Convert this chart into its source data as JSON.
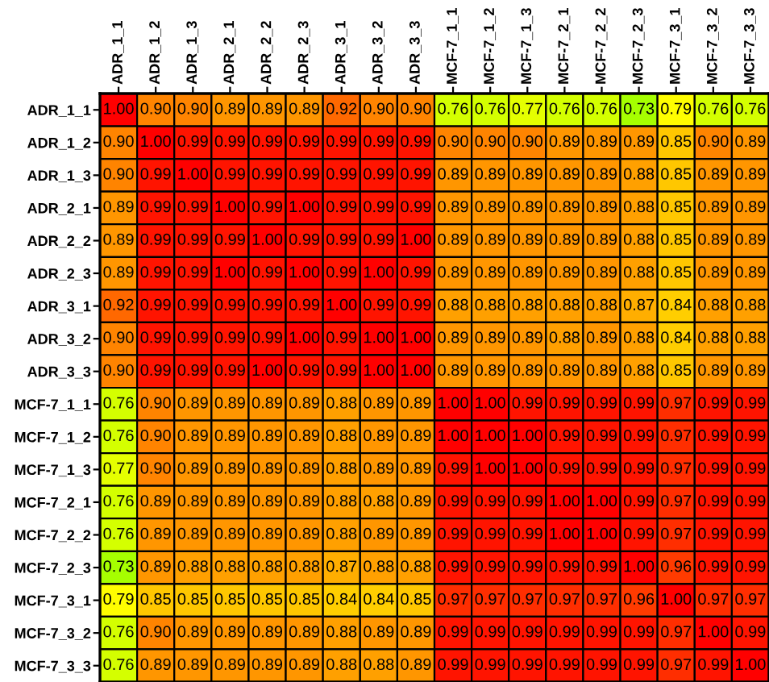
{
  "chart_data": {
    "type": "heatmap",
    "categories": [
      "ADR_1_1",
      "ADR_1_2",
      "ADR_1_3",
      "ADR_2_1",
      "ADR_2_2",
      "ADR_2_3",
      "ADR_3_1",
      "ADR_3_2",
      "ADR_3_3",
      "MCF-7_1_1",
      "MCF-7_1_2",
      "MCF-7_1_3",
      "MCF-7_2_1",
      "MCF-7_2_2",
      "MCF-7_2_3",
      "MCF-7_3_1",
      "MCF-7_3_2",
      "MCF-7_3_3"
    ],
    "y_categories": [
      "ADR_1_1",
      "ADR_1_2",
      "ADR_1_3",
      "ADR_2_1",
      "ADR_2_2",
      "ADR_2_3",
      "ADR_3_1",
      "ADR_3_2",
      "ADR_3_3",
      "MCF-7_1_1",
      "MCF-7_1_2",
      "MCF-7_1_3",
      "MCF-7_2_1",
      "MCF-7_2_2",
      "MCF-7_2_3",
      "MCF-7_3_1",
      "MCF-7_3_2",
      "MCF-7_3_3"
    ],
    "cells": [
      [
        1.0,
        0.9,
        0.9,
        0.89,
        0.89,
        0.89,
        0.92,
        0.9,
        0.9,
        0.76,
        0.76,
        0.77,
        0.76,
        0.76,
        0.73,
        0.79,
        0.76,
        0.76
      ],
      [
        0.9,
        1.0,
        0.99,
        0.99,
        0.99,
        0.99,
        0.99,
        0.99,
        0.99,
        0.9,
        0.9,
        0.9,
        0.89,
        0.89,
        0.89,
        0.85,
        0.9,
        0.89
      ],
      [
        0.9,
        0.99,
        1.0,
        0.99,
        0.99,
        0.99,
        0.99,
        0.99,
        0.99,
        0.89,
        0.89,
        0.89,
        0.89,
        0.89,
        0.88,
        0.85,
        0.89,
        0.89
      ],
      [
        0.89,
        0.99,
        0.99,
        1.0,
        0.99,
        1.0,
        0.99,
        0.99,
        0.99,
        0.89,
        0.89,
        0.89,
        0.89,
        0.89,
        0.88,
        0.85,
        0.89,
        0.89
      ],
      [
        0.89,
        0.99,
        0.99,
        0.99,
        1.0,
        0.99,
        0.99,
        0.99,
        1.0,
        0.89,
        0.89,
        0.89,
        0.89,
        0.89,
        0.88,
        0.85,
        0.89,
        0.89
      ],
      [
        0.89,
        0.99,
        0.99,
        1.0,
        0.99,
        1.0,
        0.99,
        1.0,
        0.99,
        0.89,
        0.89,
        0.89,
        0.89,
        0.89,
        0.88,
        0.85,
        0.89,
        0.89
      ],
      [
        0.92,
        0.99,
        0.99,
        0.99,
        0.99,
        0.99,
        1.0,
        0.99,
        0.99,
        0.88,
        0.88,
        0.88,
        0.88,
        0.88,
        0.87,
        0.84,
        0.88,
        0.88
      ],
      [
        0.9,
        0.99,
        0.99,
        0.99,
        0.99,
        1.0,
        0.99,
        1.0,
        1.0,
        0.89,
        0.89,
        0.89,
        0.88,
        0.89,
        0.88,
        0.84,
        0.88,
        0.88
      ],
      [
        0.9,
        0.99,
        0.99,
        0.99,
        1.0,
        0.99,
        0.99,
        1.0,
        1.0,
        0.89,
        0.89,
        0.89,
        0.89,
        0.89,
        0.88,
        0.85,
        0.89,
        0.89
      ],
      [
        0.76,
        0.9,
        0.89,
        0.89,
        0.89,
        0.89,
        0.88,
        0.89,
        0.89,
        1.0,
        1.0,
        0.99,
        0.99,
        0.99,
        0.99,
        0.97,
        0.99,
        0.99
      ],
      [
        0.76,
        0.9,
        0.89,
        0.89,
        0.89,
        0.89,
        0.88,
        0.89,
        0.89,
        1.0,
        1.0,
        1.0,
        0.99,
        0.99,
        0.99,
        0.97,
        0.99,
        0.99
      ],
      [
        0.77,
        0.9,
        0.89,
        0.89,
        0.89,
        0.89,
        0.88,
        0.89,
        0.89,
        0.99,
        1.0,
        1.0,
        0.99,
        0.99,
        0.99,
        0.97,
        0.99,
        0.99
      ],
      [
        0.76,
        0.89,
        0.89,
        0.89,
        0.89,
        0.89,
        0.88,
        0.88,
        0.89,
        0.99,
        0.99,
        0.99,
        1.0,
        1.0,
        0.99,
        0.97,
        0.99,
        0.99
      ],
      [
        0.76,
        0.89,
        0.89,
        0.89,
        0.89,
        0.89,
        0.88,
        0.89,
        0.89,
        0.99,
        0.99,
        0.99,
        1.0,
        1.0,
        0.99,
        0.97,
        0.99,
        0.99
      ],
      [
        0.73,
        0.89,
        0.88,
        0.88,
        0.88,
        0.88,
        0.87,
        0.88,
        0.88,
        0.99,
        0.99,
        0.99,
        0.99,
        0.99,
        1.0,
        0.96,
        0.99,
        0.99
      ],
      [
        0.79,
        0.85,
        0.85,
        0.85,
        0.85,
        0.85,
        0.84,
        0.84,
        0.85,
        0.97,
        0.97,
        0.97,
        0.97,
        0.97,
        0.96,
        1.0,
        0.97,
        0.97
      ],
      [
        0.76,
        0.9,
        0.89,
        0.89,
        0.89,
        0.89,
        0.88,
        0.89,
        0.89,
        0.99,
        0.99,
        0.99,
        0.99,
        0.99,
        0.99,
        0.97,
        1.0,
        0.99
      ],
      [
        0.76,
        0.89,
        0.89,
        0.89,
        0.89,
        0.89,
        0.88,
        0.88,
        0.89,
        0.99,
        0.99,
        0.99,
        0.99,
        0.99,
        0.99,
        0.97,
        0.99,
        1.0
      ]
    ],
    "cell_labels": [
      [
        "1.00",
        "0.90",
        "0.90",
        "0.89",
        "0.89",
        "0.89",
        "0.92",
        "0.90",
        "0.90",
        "0.76",
        "0.76",
        "0.77",
        "0.76",
        "0.76",
        "0.73",
        "0.79",
        "0.76",
        "0.76"
      ],
      [
        "0.90",
        "1.00",
        "0.99",
        "0.99",
        "0.99",
        "0.99",
        "0.99",
        "0.99",
        "0.99",
        "0.90",
        "0.90",
        "0.90",
        "0.89",
        "0.89",
        "0.89",
        "0.85",
        "0.90",
        "0.89"
      ],
      [
        "0.90",
        "0.99",
        "1.00",
        "0.99",
        "0.99",
        "0.99",
        "0.99",
        "0.99",
        "0.99",
        "0.89",
        "0.89",
        "0.89",
        "0.89",
        "0.89",
        "0.88",
        "0.85",
        "0.89",
        "0.89"
      ],
      [
        "0.89",
        "0.99",
        "0.99",
        "1.00",
        "0.99",
        "1.00",
        "0.99",
        "0.99",
        "0.99",
        "0.89",
        "0.89",
        "0.89",
        "0.89",
        "0.89",
        "0.88",
        "0.85",
        "0.89",
        "0.89"
      ],
      [
        "0.89",
        "0.99",
        "0.99",
        "0.99",
        "1.00",
        "0.99",
        "0.99",
        "0.99",
        "1.00",
        "0.89",
        "0.89",
        "0.89",
        "0.89",
        "0.89",
        "0.88",
        "0.85",
        "0.89",
        "0.89"
      ],
      [
        "0.89",
        "0.99",
        "0.99",
        "1.00",
        "0.99",
        "1.00",
        "0.99",
        "1.00",
        "0.99",
        "0.89",
        "0.89",
        "0.89",
        "0.89",
        "0.89",
        "0.88",
        "0.85",
        "0.89",
        "0.89"
      ],
      [
        "0.92",
        "0.99",
        "0.99",
        "0.99",
        "0.99",
        "0.99",
        "1.00",
        "0.99",
        "0.99",
        "0.88",
        "0.88",
        "0.88",
        "0.88",
        "0.88",
        "0.87",
        "0.84",
        "0.88",
        "0.88"
      ],
      [
        "0.90",
        "0.99",
        "0.99",
        "0.99",
        "0.99",
        "1.00",
        "0.99",
        "1.00",
        "1.00",
        "0.89",
        "0.89",
        "0.89",
        "0.88",
        "0.89",
        "0.88",
        "0.84",
        "0.88",
        "0.88"
      ],
      [
        "0.90",
        "0.99",
        "0.99",
        "0.99",
        "1.00",
        "0.99",
        "0.99",
        "1.00",
        "1.00",
        "0.89",
        "0.89",
        "0.89",
        "0.89",
        "0.89",
        "0.88",
        "0.85",
        "0.89",
        "0.89"
      ],
      [
        "0.76",
        "0.90",
        "0.89",
        "0.89",
        "0.89",
        "0.89",
        "0.88",
        "0.89",
        "0.89",
        "1.00",
        "1.00",
        "0.99",
        "0.99",
        "0.99",
        "0.99",
        "0.97",
        "0.99",
        "0.99"
      ],
      [
        "0.76",
        "0.90",
        "0.89",
        "0.89",
        "0.89",
        "0.89",
        "0.88",
        "0.89",
        "0.89",
        "1.00",
        "1.00",
        "1.00",
        "0.99",
        "0.99",
        "0.99",
        "0.97",
        "0.99",
        "0.99"
      ],
      [
        "0.77",
        "0.90",
        "0.89",
        "0.89",
        "0.89",
        "0.89",
        "0.88",
        "0.89",
        "0.89",
        "0.99",
        "1.00",
        "1.00",
        "0.99",
        "0.99",
        "0.99",
        "0.97",
        "0.99",
        "0.99"
      ],
      [
        "0.76",
        "0.89",
        "0.89",
        "0.89",
        "0.89",
        "0.89",
        "0.88",
        "0.88",
        "0.89",
        "0.99",
        "0.99",
        "0.99",
        "1.00",
        "1.00",
        "0.99",
        "0.97",
        "0.99",
        "0.99"
      ],
      [
        "0.76",
        "0.89",
        "0.89",
        "0.89",
        "0.89",
        "0.89",
        "0.88",
        "0.89",
        "0.89",
        "0.99",
        "0.99",
        "0.99",
        "1.00",
        "1.00",
        "0.99",
        "0.97",
        "0.99",
        "0.99"
      ],
      [
        "0.73",
        "0.89",
        "0.88",
        "0.88",
        "0.88",
        "0.88",
        "0.87",
        "0.88",
        "0.88",
        "0.99",
        "0.99",
        "0.99",
        "0.99",
        "0.99",
        "1.00",
        "0.96",
        "0.99",
        "0.99"
      ],
      [
        "0.79",
        "0.85",
        "0.85",
        "0.85",
        "0.85",
        "0.85",
        "0.84",
        "0.84",
        "0.85",
        "0.97",
        "0.97",
        "0.97",
        "0.97",
        "0.97",
        "0.96",
        "1.00",
        "0.97",
        "0.97"
      ],
      [
        "0.76",
        "0.90",
        "0.89",
        "0.89",
        "0.89",
        "0.89",
        "0.88",
        "0.89",
        "0.89",
        "0.99",
        "0.99",
        "0.99",
        "0.99",
        "0.99",
        "0.99",
        "0.97",
        "1.00",
        "0.99"
      ],
      [
        "0.76",
        "0.89",
        "0.89",
        "0.89",
        "0.89",
        "0.89",
        "0.88",
        "0.88",
        "0.89",
        "0.99",
        "0.99",
        "0.99",
        "0.99",
        "0.99",
        "0.99",
        "0.97",
        "0.99",
        "1.00"
      ]
    ]
  }
}
